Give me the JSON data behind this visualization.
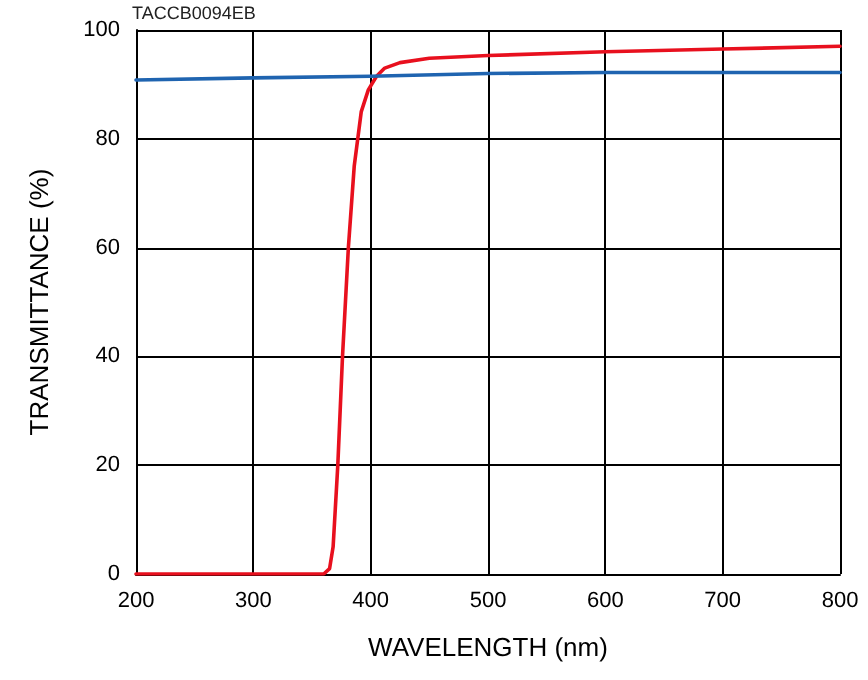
{
  "chart_data": {
    "type": "line",
    "xlabel": "WAVELENGTH (nm)",
    "ylabel": "TRANSMITTANCE (%)",
    "annotations": [
      "TACCB0094EB"
    ],
    "xlim": [
      200,
      800
    ],
    "xticks": [
      200,
      300,
      400,
      500,
      600,
      700,
      800
    ],
    "ylim": [
      0,
      100
    ],
    "yticks": [
      0,
      20,
      40,
      60,
      80,
      100
    ],
    "grid": true,
    "marker": "none",
    "line_style": "solid",
    "series": [
      {
        "color": "#e8101e",
        "x": [
          200,
          300,
          360,
          365,
          368,
          372,
          376,
          381,
          386,
          392,
          398,
          405,
          412,
          425,
          450,
          500,
          600,
          700,
          800
        ],
        "values": [
          0,
          0,
          0,
          1,
          5,
          20,
          40,
          60,
          75,
          85,
          89,
          91.5,
          93,
          94,
          94.8,
          95.3,
          96,
          96.5,
          97
        ]
      },
      {
        "color": "#1f64b0",
        "x": [
          200,
          300,
          400,
          500,
          600,
          700,
          800
        ],
        "values": [
          90.8,
          91.2,
          91.5,
          92,
          92.2,
          92.2,
          92.2
        ]
      }
    ]
  }
}
